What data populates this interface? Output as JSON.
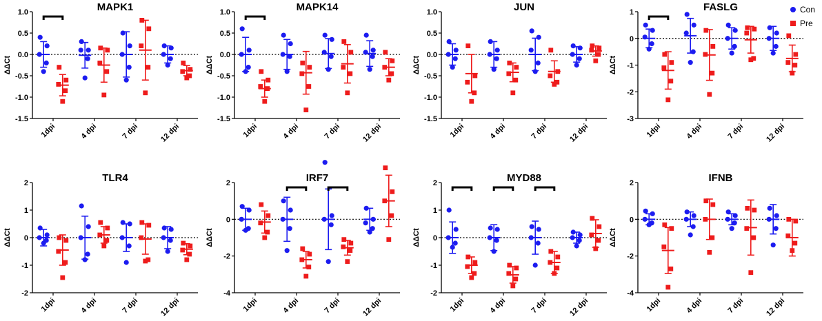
{
  "figure": {
    "domain": "qPCR dot plots"
  },
  "colors": {
    "con": "#1c1cf0",
    "pre": "#ee1c1c",
    "axis": "#000000"
  },
  "legend": {
    "con_label": "Con",
    "pre_label": "Pre",
    "position": "top-right"
  },
  "chart_data": [
    {
      "type": "scatter",
      "title": "MAPK1",
      "ylabel": "ΔΔCt",
      "ylim": [
        -1.5,
        1.0
      ],
      "yticks": [
        -1.5,
        -1.0,
        -0.5,
        0.0,
        0.5,
        1.0
      ],
      "ytick_labels": [
        "-1.5",
        "-1.0",
        "-0.5",
        "0.0",
        "0.5",
        "1.0"
      ],
      "categories": [
        "1dpi",
        "4 dpi",
        "7 dpi",
        "12 dpi"
      ],
      "series": [
        {
          "name": "Con",
          "points": [
            [
              0.4,
              0.2,
              0.0,
              -0.2,
              -0.4
            ],
            [
              0.3,
              0.1,
              0.1,
              -0.1,
              -0.55
            ],
            [
              0.5,
              0.2,
              0.0,
              -0.3,
              -0.6
            ],
            [
              0.2,
              0.15,
              0.0,
              -0.1,
              -0.25
            ]
          ],
          "mean": [
            0.0,
            -0.02,
            0.0,
            0.0
          ],
          "sd": [
            0.3,
            0.3,
            0.53,
            0.2
          ]
        },
        {
          "name": "Pre",
          "points": [
            [
              -0.3,
              -0.6,
              -0.7,
              -0.85,
              -1.1
            ],
            [
              0.15,
              0.1,
              -0.2,
              -0.4,
              -0.95
            ],
            [
              0.8,
              0.6,
              0.2,
              -0.3,
              -0.9
            ],
            [
              -0.2,
              -0.35,
              -0.4,
              -0.5,
              -0.55
            ]
          ],
          "mean": [
            -0.72,
            -0.25,
            0.1,
            -0.38
          ],
          "sd": [
            0.25,
            0.4,
            0.7,
            0.12
          ]
        }
      ],
      "significance": [
        0
      ]
    },
    {
      "type": "scatter",
      "title": "MAPK14",
      "ylabel": "ΔΔCt",
      "ylim": [
        -1.5,
        1.0
      ],
      "yticks": [
        -1.5,
        -1.0,
        -0.5,
        0.0,
        0.5,
        1.0
      ],
      "ytick_labels": [
        "-1.5",
        "-1.0",
        "-0.5",
        "0.0",
        "0.5",
        "1.0"
      ],
      "categories": [
        "1dpi",
        "4 dpi",
        "7 dpi",
        "12 dpi"
      ],
      "series": [
        {
          "name": "Con",
          "points": [
            [
              0.6,
              0.1,
              0.0,
              -0.3,
              -0.4
            ],
            [
              0.45,
              0.25,
              0.0,
              -0.05,
              -0.4
            ],
            [
              0.45,
              0.35,
              0.05,
              -0.05,
              -0.35
            ],
            [
              0.45,
              0.1,
              0.05,
              -0.05,
              -0.35
            ]
          ],
          "mean": [
            0.0,
            0.0,
            0.02,
            0.02
          ],
          "sd": [
            0.4,
            0.35,
            0.35,
            0.3
          ]
        },
        {
          "name": "Pre",
          "points": [
            [
              -0.4,
              -0.6,
              -0.75,
              -0.8,
              -1.1
            ],
            [
              -0.2,
              -0.3,
              -0.45,
              -0.75,
              -1.3
            ],
            [
              0.3,
              0.05,
              -0.3,
              -0.45,
              -0.9
            ],
            [
              0.05,
              -0.15,
              -0.3,
              -0.45,
              -0.6
            ]
          ],
          "mean": [
            -0.8,
            -0.43,
            -0.22,
            -0.3
          ],
          "sd": [
            0.2,
            0.5,
            0.45,
            0.2
          ]
        }
      ],
      "significance": [
        0
      ]
    },
    {
      "type": "scatter",
      "title": "JUN",
      "ylabel": "ΔΔCt",
      "ylim": [
        -1.5,
        1.0
      ],
      "yticks": [
        -1.5,
        -1.0,
        -0.5,
        0.0,
        0.5,
        1.0
      ],
      "ytick_labels": [
        "-1.5",
        "-1.0",
        "-0.5",
        "0.0",
        "0.5",
        "1.0"
      ],
      "categories": [
        "1dpi",
        "4 dpi",
        "7 dpi",
        "12 dpi"
      ],
      "series": [
        {
          "name": "Con",
          "points": [
            [
              0.3,
              0.1,
              0.0,
              -0.1,
              -0.3
            ],
            [
              0.3,
              0.1,
              0.0,
              -0.1,
              -0.35
            ],
            [
              0.55,
              0.4,
              0.1,
              -0.2,
              -0.4
            ],
            [
              0.2,
              0.15,
              0.0,
              -0.1,
              -0.25
            ]
          ],
          "mean": [
            0.0,
            0.0,
            0.0,
            0.0
          ],
          "sd": [
            0.25,
            0.3,
            0.38,
            0.18
          ]
        },
        {
          "name": "Pre",
          "points": [
            [
              0.2,
              -0.5,
              -0.65,
              -0.9,
              -1.1
            ],
            [
              -0.2,
              -0.3,
              -0.45,
              -0.6,
              -0.9
            ],
            [
              0.1,
              -0.4,
              -0.5,
              -0.65,
              -0.7
            ],
            [
              0.2,
              0.15,
              0.1,
              0.0,
              -0.15
            ]
          ],
          "mean": [
            -0.45,
            -0.42,
            -0.4,
            0.08
          ],
          "sd": [
            0.45,
            0.22,
            0.25,
            0.12
          ]
        }
      ],
      "significance": []
    },
    {
      "type": "scatter",
      "title": "FASLG",
      "ylabel": "ΔΔCt",
      "ylim": [
        -3,
        1
      ],
      "yticks": [
        -3,
        -2,
        -1,
        0,
        1
      ],
      "ytick_labels": [
        "-3",
        "-2",
        "-1",
        "0",
        "1"
      ],
      "categories": [
        "1dpi",
        "4 dpi",
        "7 dpi",
        "12 dpi"
      ],
      "series": [
        {
          "name": "Con",
          "points": [
            [
              0.5,
              0.3,
              0.05,
              -0.2,
              -0.4
            ],
            [
              0.9,
              0.5,
              0.2,
              -0.5,
              -0.9
            ],
            [
              0.5,
              0.3,
              0.0,
              -0.3,
              -0.55
            ],
            [
              0.4,
              0.2,
              0.0,
              -0.3,
              -0.55
            ]
          ],
          "mean": [
            0.0,
            0.1,
            0.0,
            0.0
          ],
          "sd": [
            0.35,
            0.65,
            0.4,
            0.45
          ]
        },
        {
          "name": "Pre",
          "points": [
            [
              -0.6,
              -0.9,
              -1.1,
              -1.6,
              -2.3
            ],
            [
              0.3,
              -0.3,
              -0.6,
              -1.3,
              -2.1
            ],
            [
              0.4,
              0.35,
              0.2,
              -0.75,
              -0.8
            ],
            [
              0.1,
              -0.6,
              -0.9,
              -1.0,
              -1.3
            ]
          ],
          "mean": [
            -1.2,
            -0.62,
            -0.05,
            -0.75
          ],
          "sd": [
            0.7,
            0.95,
            0.5,
            0.5
          ]
        }
      ],
      "significance": [
        0
      ]
    },
    {
      "type": "scatter",
      "title": "TLR4",
      "ylabel": "ΔΔCt",
      "ylim": [
        -2,
        2
      ],
      "yticks": [
        -2,
        -1,
        0,
        1,
        2
      ],
      "ytick_labels": [
        "-2",
        "-1",
        "0",
        "1",
        "2"
      ],
      "categories": [
        "1dpi",
        "4 dpi",
        "7 dpi",
        "12 dpi"
      ],
      "series": [
        {
          "name": "Con",
          "points": [
            [
              0.35,
              0.1,
              0.0,
              -0.1,
              -0.2
            ],
            [
              1.15,
              0.4,
              0.0,
              -0.6,
              -0.8
            ],
            [
              0.55,
              0.5,
              0.0,
              -0.3,
              -0.9
            ],
            [
              0.35,
              0.3,
              0.0,
              -0.1,
              -0.5
            ]
          ],
          "mean": [
            0.0,
            0.0,
            0.0,
            0.0
          ],
          "sd": [
            0.3,
            0.78,
            0.5,
            0.4
          ]
        },
        {
          "name": "Pre",
          "points": [
            [
              0.0,
              -0.1,
              -0.5,
              -0.9,
              -1.45
            ],
            [
              0.55,
              0.35,
              0.1,
              -0.1,
              -0.3
            ],
            [
              0.55,
              0.45,
              0.0,
              -0.8,
              -0.85
            ],
            [
              -0.2,
              -0.3,
              -0.45,
              -0.6,
              -0.8
            ]
          ],
          "mean": [
            -0.45,
            0.1,
            -0.05,
            -0.42
          ],
          "sd": [
            0.55,
            0.3,
            0.55,
            0.2
          ]
        }
      ],
      "significance": []
    },
    {
      "type": "scatter",
      "title": "IRF7",
      "ylabel": "ΔΔCt",
      "ylim": [
        -4,
        2
      ],
      "yticks": [
        -4,
        -2,
        0,
        2
      ],
      "ytick_labels": [
        "-4",
        "-2",
        "0",
        "2"
      ],
      "categories": [
        "1dpi",
        "4 dpi",
        "7 dpi",
        "12 dpi"
      ],
      "series": [
        {
          "name": "Con",
          "points": [
            [
              0.7,
              0.5,
              0.0,
              -0.5,
              -0.6
            ],
            [
              1.0,
              0.5,
              0.0,
              -0.5,
              -1.7
            ],
            [
              3.1,
              0.2,
              0.0,
              -0.3,
              -2.3
            ],
            [
              0.6,
              0.0,
              -0.2,
              -0.5,
              -0.7
            ]
          ],
          "mean": [
            0.0,
            0.0,
            0.0,
            0.0
          ],
          "sd": [
            0.6,
            1.2,
            1.65,
            0.6
          ]
        },
        {
          "name": "Pre",
          "points": [
            [
              0.8,
              0.2,
              -0.2,
              -0.7,
              -1.0
            ],
            [
              -1.6,
              -1.9,
              -2.2,
              -2.6,
              -3.1
            ],
            [
              -1.1,
              -1.3,
              -1.5,
              -1.7,
              -2.3
            ],
            [
              2.8,
              1.5,
              1.0,
              0.2,
              -1.1
            ]
          ],
          "mean": [
            -0.15,
            -2.2,
            -1.55,
            1.0
          ],
          "sd": [
            0.6,
            0.45,
            0.4,
            1.4
          ]
        }
      ],
      "significance": [
        1,
        2
      ]
    },
    {
      "type": "scatter",
      "title": "MYD88",
      "ylabel": "ΔΔCt",
      "ylim": [
        -2,
        2
      ],
      "yticks": [
        -2,
        -1,
        0,
        1,
        2
      ],
      "ytick_labels": [
        "-2",
        "-1",
        "0",
        "1",
        "2"
      ],
      "categories": [
        "1dpi",
        "4 dpi",
        "7 dpi",
        "12 dpi"
      ],
      "series": [
        {
          "name": "Con",
          "points": [
            [
              1.0,
              0.3,
              0.0,
              -0.2,
              -0.35
            ],
            [
              0.35,
              0.3,
              0.0,
              -0.1,
              -0.5
            ],
            [
              0.4,
              0.3,
              0.0,
              -0.2,
              -1.0
            ],
            [
              0.2,
              0.1,
              0.0,
              -0.1,
              -0.3
            ]
          ],
          "mean": [
            0.0,
            0.0,
            0.0,
            0.0
          ],
          "sd": [
            0.57,
            0.47,
            0.6,
            0.2
          ]
        },
        {
          "name": "Pre",
          "points": [
            [
              -0.7,
              -0.9,
              -1.05,
              -1.3,
              -1.45
            ],
            [
              -1.0,
              -1.1,
              -1.3,
              -1.5,
              -1.75
            ],
            [
              -0.5,
              -0.7,
              -0.9,
              -1.1,
              -1.3
            ],
            [
              0.7,
              0.4,
              0.1,
              -0.1,
              -0.4
            ]
          ],
          "mean": [
            -1.0,
            -1.35,
            -0.9,
            0.15
          ],
          "sd": [
            0.3,
            0.3,
            0.4,
            0.5
          ]
        }
      ],
      "significance": [
        0,
        1,
        2
      ]
    },
    {
      "type": "scatter",
      "title": "IFNB",
      "ylabel": "ΔΔCt",
      "ylim": [
        -4,
        2
      ],
      "yticks": [
        -4,
        -2,
        0,
        2
      ],
      "ytick_labels": [
        "-4",
        "-2",
        "0",
        "2"
      ],
      "categories": [
        "1dpi",
        "4 dpi",
        "7 dpi",
        "12 dpi"
      ],
      "series": [
        {
          "name": "Con",
          "points": [
            [
              0.45,
              0.3,
              0.0,
              -0.2,
              -0.3
            ],
            [
              0.4,
              0.2,
              0.0,
              -0.4,
              -0.85
            ],
            [
              0.4,
              0.2,
              0.0,
              -0.2,
              -0.5
            ],
            [
              0.6,
              0.2,
              0.0,
              -0.5,
              -1.4
            ]
          ],
          "mean": [
            0.0,
            0.0,
            0.0,
            0.0
          ],
          "sd": [
            0.3,
            0.4,
            0.3,
            0.8
          ]
        },
        {
          "name": "Pre",
          "points": [
            [
              -0.3,
              -0.5,
              -1.5,
              -2.7,
              -3.7
            ],
            [
              1.0,
              0.8,
              0.0,
              -1.0,
              -1.8
            ],
            [
              0.6,
              0.5,
              -0.5,
              -1.0,
              -2.9
            ],
            [
              0.0,
              -0.1,
              -0.9,
              -1.3,
              -1.7
            ]
          ],
          "mean": [
            -1.7,
            0.0,
            -0.45,
            -1.0
          ],
          "sd": [
            1.25,
            1.1,
            1.5,
            1.0
          ]
        }
      ],
      "significance": []
    }
  ]
}
